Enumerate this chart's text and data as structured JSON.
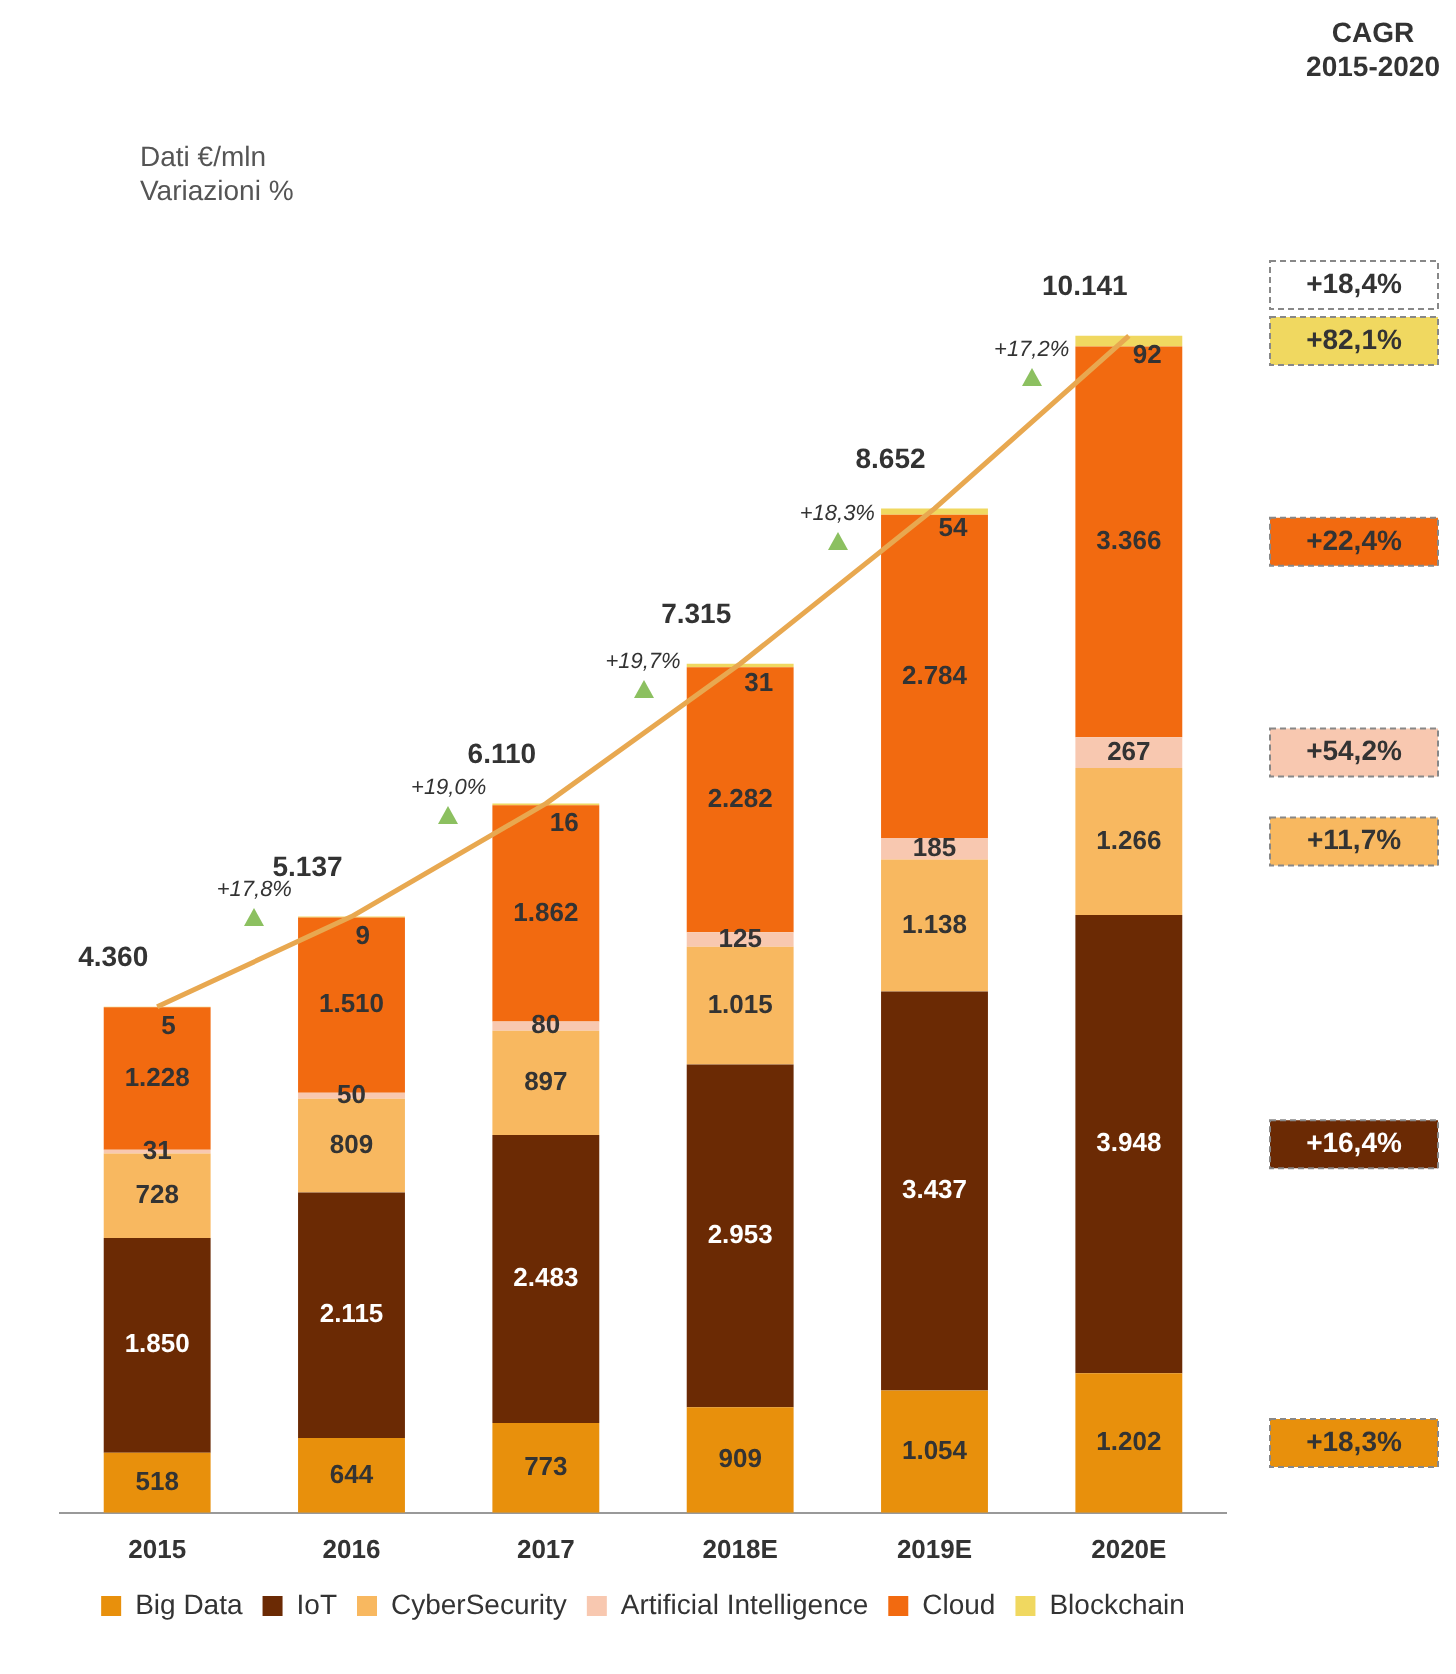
{
  "chart_data": {
    "type": "bar",
    "stacked": true,
    "categories": [
      "2015",
      "2016",
      "2017",
      "2018E",
      "2019E",
      "2020E"
    ],
    "series": [
      {
        "name": "Big Data",
        "color": "#e8900c",
        "values": [
          518,
          644,
          773,
          909,
          1054,
          1202
        ],
        "value_labels": [
          "518",
          "644",
          "773",
          "909",
          "1.054",
          "1.202"
        ]
      },
      {
        "name": "IoT",
        "color": "#6b2a04",
        "values": [
          1850,
          2115,
          2483,
          2953,
          3437,
          3948
        ],
        "value_labels": [
          "1.850",
          "2.115",
          "2.483",
          "2.953",
          "3.437",
          "3.948"
        ]
      },
      {
        "name": "CyberSecurity",
        "color": "#f8b860",
        "values": [
          728,
          809,
          897,
          1015,
          1138,
          1266
        ],
        "value_labels": [
          "728",
          "809",
          "897",
          "1.015",
          "1.138",
          "1.266"
        ]
      },
      {
        "name": "Artificial Intelligence",
        "color": "#f8c8b0",
        "values": [
          31,
          50,
          80,
          125,
          185,
          267
        ],
        "value_labels": [
          "31",
          "50",
          "80",
          "125",
          "185",
          "267"
        ]
      },
      {
        "name": "Cloud",
        "color": "#f26a10",
        "values": [
          1228,
          1510,
          1862,
          2282,
          2784,
          3366
        ],
        "value_labels": [
          "1.228",
          "1.510",
          "1.862",
          "2.282",
          "2.784",
          "3.366"
        ]
      },
      {
        "name": "Blockchain",
        "color": "#f0d860",
        "values": [
          5,
          9,
          16,
          31,
          54,
          92
        ],
        "value_labels": [
          "5",
          "9",
          "16",
          "31",
          "54",
          "92"
        ]
      },
      {
        "type": "line",
        "color": "#e8a850",
        "values": [
          4360,
          5137,
          6110,
          7315,
          8652,
          10141
        ],
        "value_labels": [
          "4.360",
          "5.137",
          "6.110",
          "7.315",
          "8.652",
          "10.141"
        ]
      }
    ],
    "tick_labels": "x",
    "grid": false,
    "legend": "bottom",
    "marker": "none",
    "annotations": [
      "Dati €/mln",
      "Variazioni %",
      "CAGR",
      "2015-2020",
      "+17,8%",
      "+19,0%",
      "+19,7%",
      "+18,3%",
      "+17,2%",
      "+18,4%",
      "+18,3%",
      "+16,4%",
      "+11,7%",
      "+54,2%",
      "+22,4%",
      "+82,1%"
    ]
  }
}
